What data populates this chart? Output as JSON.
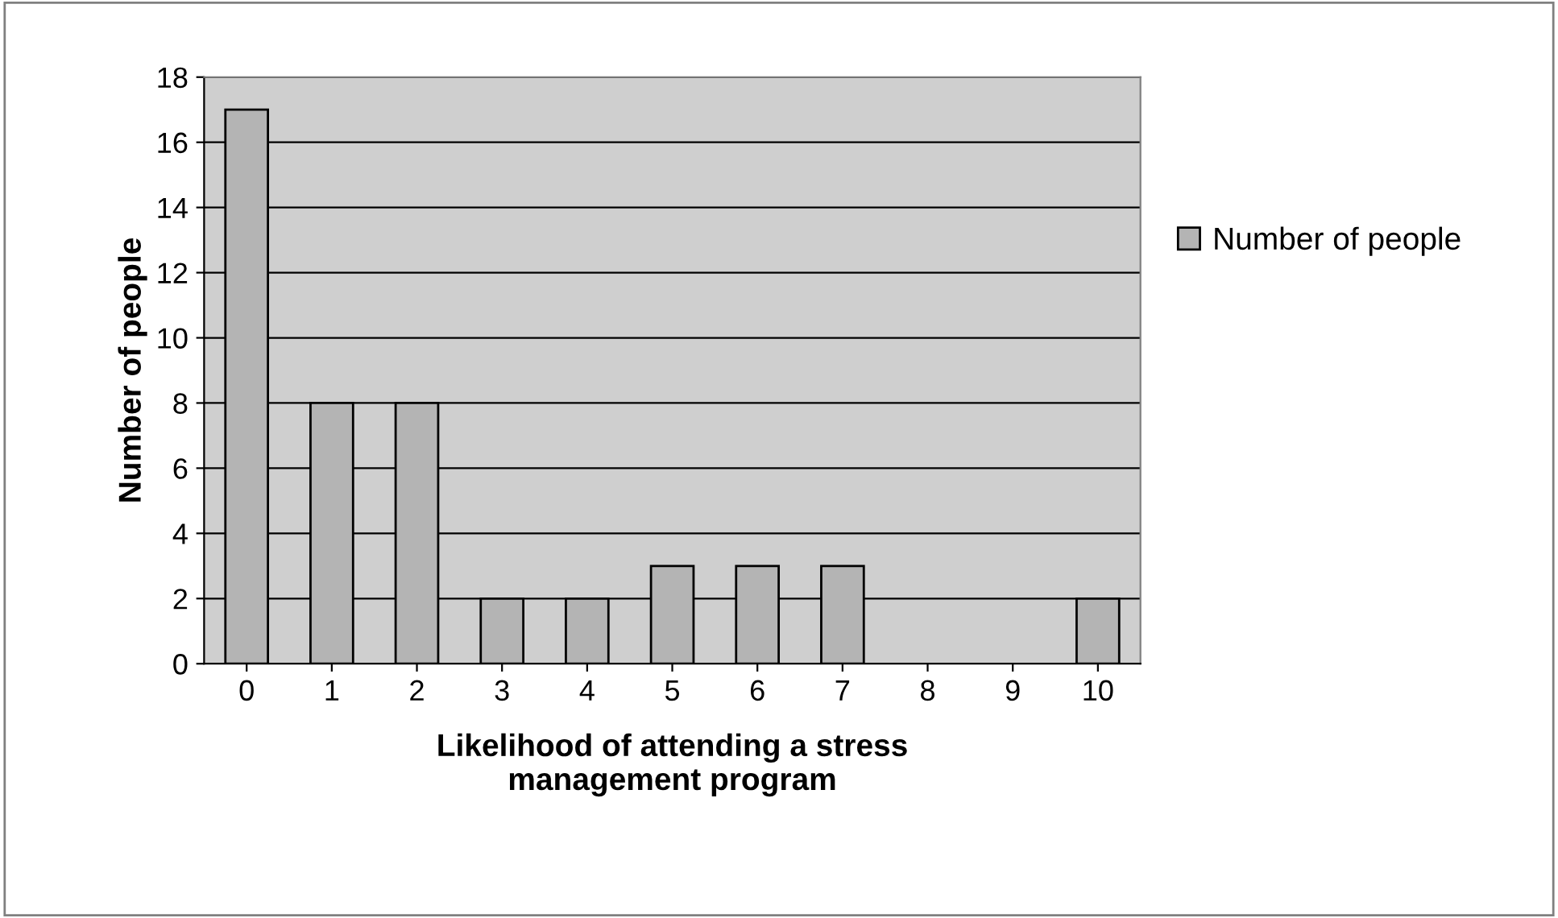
{
  "chart_data": {
    "type": "bar",
    "xlabel": "Likelihood of attending a stress\nmanagement program",
    "ylabel": "Number of people",
    "categories": [
      "0",
      "1",
      "2",
      "3",
      "4",
      "5",
      "6",
      "7",
      "8",
      "9",
      "10"
    ],
    "series": [
      {
        "name": "Number of people",
        "color": "#b4b4b4",
        "values": [
          17,
          8,
          8,
          2,
          2,
          3,
          3,
          3,
          0,
          0,
          2
        ]
      }
    ],
    "ylim": [
      0,
      18
    ],
    "yticks": [
      0,
      2,
      4,
      6,
      8,
      10,
      12,
      14,
      16,
      18
    ],
    "grid": "y",
    "legend": "right"
  }
}
